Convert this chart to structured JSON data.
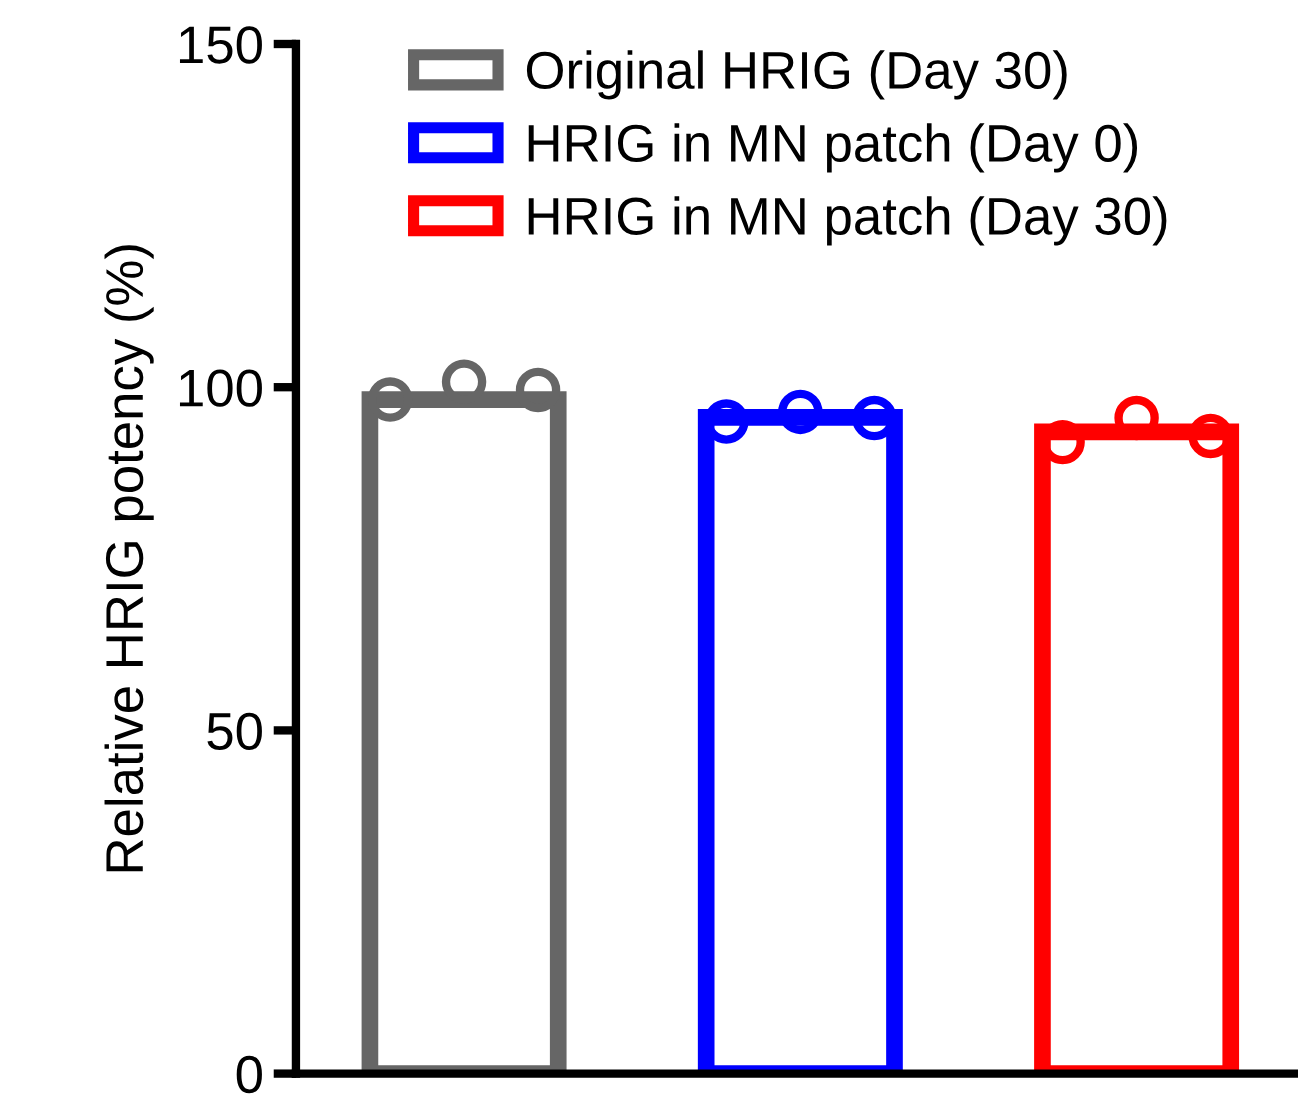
{
  "chart_data": {
    "type": "bar",
    "ylabel": "Relative HRIG potency (%)",
    "categories": [
      null,
      null,
      null
    ],
    "series": [
      {
        "name": "Original HRIG (Day 30)",
        "color": "#666666",
        "values": [
          98.2,
          null,
          null
        ]
      },
      {
        "name": "HRIG in MN patch (Day 0)",
        "color": "#0000ff",
        "values": [
          null,
          95.6,
          null
        ]
      },
      {
        "name": "HRIG in MN patch (Day 30)",
        "color": "#ff0000",
        "values": [
          null,
          null,
          93.5
        ]
      },
      {
        "type": "scatter",
        "colors": [
          "#666666",
          "#0000ff",
          "#ff0000"
        ],
        "values": [
          98.2,
          95,
          92
        ]
      },
      {
        "type": "scatter",
        "colors": [
          "#666666",
          "#0000ff",
          "#ff0000"
        ],
        "values": [
          100.8,
          96.4,
          95.5
        ]
      },
      {
        "type": "scatter",
        "colors": [
          "#666666",
          "#0000ff",
          "#ff0000"
        ],
        "values": [
          99.6,
          95.5,
          92.9
        ]
      }
    ],
    "ylim": [
      0,
      150
    ],
    "yticks": [
      0,
      50,
      100,
      150
    ],
    "tick_labels": "y",
    "grid": false,
    "legend": "top left",
    "marker": "circle"
  }
}
